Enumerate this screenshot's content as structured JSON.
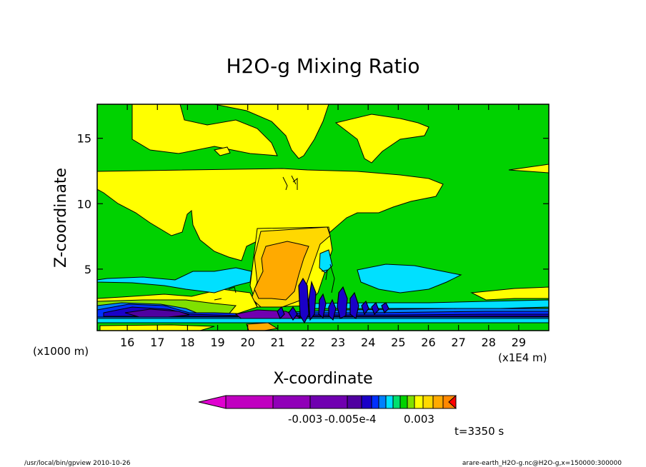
{
  "chart_data": {
    "type": "contour",
    "title": "H2O-g Mixing Ratio",
    "xlabel": "X-coordinate",
    "ylabel": "Z-coordinate",
    "x_unit_note": "(x1E4 m)",
    "y_unit_note": "(x1000 m)",
    "x_ticks": [
      "16",
      "17",
      "18",
      "19",
      "20",
      "21",
      "22",
      "23",
      "24",
      "25",
      "26",
      "27",
      "28",
      "29"
    ],
    "y_ticks": [
      "5",
      "10",
      "15"
    ],
    "xlim": [
      15,
      30
    ],
    "ylim": [
      0.3,
      17.6
    ],
    "colorbar": {
      "colors": [
        "#c000c0",
        "#9000b8",
        "#7000b0",
        "#5000a0",
        "#1a00c8",
        "#0030ff",
        "#0080ff",
        "#00e0ff",
        "#00e070",
        "#00d200",
        "#80e000",
        "#ffff00",
        "#ffd800",
        "#ffaa00",
        "#ff8800",
        "#ff0000"
      ],
      "labels": [
        "-0.003",
        "-0.005e-4",
        "0.003"
      ]
    },
    "time_label": "t=3350 s"
  },
  "footer": {
    "left": "/usr/local/bin/gpview  2010-10-26",
    "right": "arare-earth_H2O-g.nc@H2O-g,x=150000:300000"
  }
}
